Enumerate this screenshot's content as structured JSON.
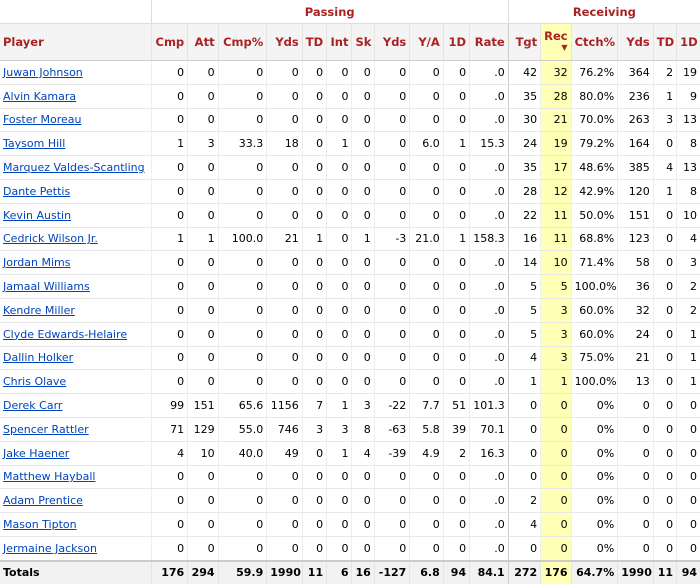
{
  "groups": {
    "passing": "Passing",
    "receiving": "Receiving"
  },
  "columns": [
    "Player",
    "Cmp",
    "Att",
    "Cmp%",
    "Yds",
    "TD",
    "Int",
    "Sk",
    "Yds",
    "Y/A",
    "1D",
    "Rate",
    "Tgt",
    "Rec",
    "Ctch%",
    "Yds",
    "TD",
    "1D"
  ],
  "sort_indicator": "▼",
  "rows": [
    [
      "Juwan Johnson",
      "0",
      "0",
      "0",
      "0",
      "0",
      "0",
      "0",
      "0",
      "0",
      "0",
      ".0",
      "42",
      "32",
      "76.2%",
      "364",
      "2",
      "19"
    ],
    [
      "Alvin Kamara",
      "0",
      "0",
      "0",
      "0",
      "0",
      "0",
      "0",
      "0",
      "0",
      "0",
      ".0",
      "35",
      "28",
      "80.0%",
      "236",
      "1",
      "9"
    ],
    [
      "Foster Moreau",
      "0",
      "0",
      "0",
      "0",
      "0",
      "0",
      "0",
      "0",
      "0",
      "0",
      ".0",
      "30",
      "21",
      "70.0%",
      "263",
      "3",
      "13"
    ],
    [
      "Taysom Hill",
      "1",
      "3",
      "33.3",
      "18",
      "0",
      "1",
      "0",
      "0",
      "6.0",
      "1",
      "15.3",
      "24",
      "19",
      "79.2%",
      "164",
      "0",
      "8"
    ],
    [
      "Marquez Valdes-Scantling",
      "0",
      "0",
      "0",
      "0",
      "0",
      "0",
      "0",
      "0",
      "0",
      "0",
      ".0",
      "35",
      "17",
      "48.6%",
      "385",
      "4",
      "13"
    ],
    [
      "Dante Pettis",
      "0",
      "0",
      "0",
      "0",
      "0",
      "0",
      "0",
      "0",
      "0",
      "0",
      ".0",
      "28",
      "12",
      "42.9%",
      "120",
      "1",
      "8"
    ],
    [
      "Kevin Austin",
      "0",
      "0",
      "0",
      "0",
      "0",
      "0",
      "0",
      "0",
      "0",
      "0",
      ".0",
      "22",
      "11",
      "50.0%",
      "151",
      "0",
      "10"
    ],
    [
      "Cedrick Wilson Jr.",
      "1",
      "1",
      "100.0",
      "21",
      "1",
      "0",
      "1",
      "-3",
      "21.0",
      "1",
      "158.3",
      "16",
      "11",
      "68.8%",
      "123",
      "0",
      "4"
    ],
    [
      "Jordan Mims",
      "0",
      "0",
      "0",
      "0",
      "0",
      "0",
      "0",
      "0",
      "0",
      "0",
      ".0",
      "14",
      "10",
      "71.4%",
      "58",
      "0",
      "3"
    ],
    [
      "Jamaal Williams",
      "0",
      "0",
      "0",
      "0",
      "0",
      "0",
      "0",
      "0",
      "0",
      "0",
      ".0",
      "5",
      "5",
      "100.0%",
      "36",
      "0",
      "2"
    ],
    [
      "Kendre Miller",
      "0",
      "0",
      "0",
      "0",
      "0",
      "0",
      "0",
      "0",
      "0",
      "0",
      ".0",
      "5",
      "3",
      "60.0%",
      "32",
      "0",
      "2"
    ],
    [
      "Clyde Edwards-Helaire",
      "0",
      "0",
      "0",
      "0",
      "0",
      "0",
      "0",
      "0",
      "0",
      "0",
      ".0",
      "5",
      "3",
      "60.0%",
      "24",
      "0",
      "1"
    ],
    [
      "Dallin Holker",
      "0",
      "0",
      "0",
      "0",
      "0",
      "0",
      "0",
      "0",
      "0",
      "0",
      ".0",
      "4",
      "3",
      "75.0%",
      "21",
      "0",
      "1"
    ],
    [
      "Chris Olave",
      "0",
      "0",
      "0",
      "0",
      "0",
      "0",
      "0",
      "0",
      "0",
      "0",
      ".0",
      "1",
      "1",
      "100.0%",
      "13",
      "0",
      "1"
    ],
    [
      "Derek Carr",
      "99",
      "151",
      "65.6",
      "1156",
      "7",
      "1",
      "3",
      "-22",
      "7.7",
      "51",
      "101.3",
      "0",
      "0",
      "0%",
      "0",
      "0",
      "0"
    ],
    [
      "Spencer Rattler",
      "71",
      "129",
      "55.0",
      "746",
      "3",
      "3",
      "8",
      "-63",
      "5.8",
      "39",
      "70.1",
      "0",
      "0",
      "0%",
      "0",
      "0",
      "0"
    ],
    [
      "Jake Haener",
      "4",
      "10",
      "40.0",
      "49",
      "0",
      "1",
      "4",
      "-39",
      "4.9",
      "2",
      "16.3",
      "0",
      "0",
      "0%",
      "0",
      "0",
      "0"
    ],
    [
      "Matthew Hayball",
      "0",
      "0",
      "0",
      "0",
      "0",
      "0",
      "0",
      "0",
      "0",
      "0",
      ".0",
      "0",
      "0",
      "0%",
      "0",
      "0",
      "0"
    ],
    [
      "Adam Prentice",
      "0",
      "0",
      "0",
      "0",
      "0",
      "0",
      "0",
      "0",
      "0",
      "0",
      ".0",
      "2",
      "0",
      "0%",
      "0",
      "0",
      "0"
    ],
    [
      "Mason Tipton",
      "0",
      "0",
      "0",
      "0",
      "0",
      "0",
      "0",
      "0",
      "0",
      "0",
      ".0",
      "4",
      "0",
      "0%",
      "0",
      "0",
      "0"
    ],
    [
      "Jermaine Jackson",
      "0",
      "0",
      "0",
      "0",
      "0",
      "0",
      "0",
      "0",
      "0",
      "0",
      ".0",
      "0",
      "0",
      "0%",
      "0",
      "0",
      "0"
    ]
  ],
  "totals": [
    "Totals",
    "176",
    "294",
    "59.9",
    "1990",
    "11",
    "6",
    "16",
    "-127",
    "6.8",
    "94",
    "84.1",
    "272",
    "176",
    "64.7%",
    "1990",
    "11",
    "94"
  ]
}
